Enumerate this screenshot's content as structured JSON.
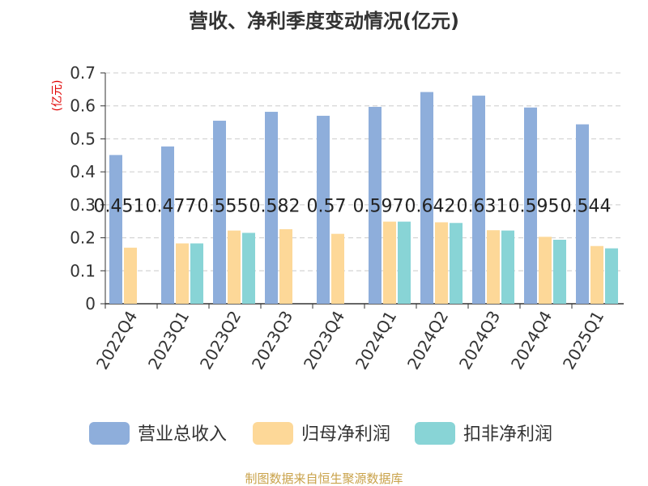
{
  "chart_data": {
    "type": "bar",
    "title": "营收、净利季度变动情况(亿元)",
    "ylabel": "(亿元)",
    "ylim": [
      0,
      0.7
    ],
    "yticks": [
      "0",
      "0.1",
      "0.2",
      "0.3",
      "0.4",
      "0.5",
      "0.6",
      "0.7"
    ],
    "grid": true,
    "legend_position": "bottom",
    "categories": [
      "2022Q4",
      "2023Q1",
      "2023Q2",
      "2023Q3",
      "2023Q4",
      "2024Q1",
      "2024Q2",
      "2024Q3",
      "2024Q4",
      "2025Q1"
    ],
    "series": [
      {
        "name": "营业总收入",
        "color": "#8eaedb",
        "values": [
          0.451,
          0.477,
          0.555,
          0.582,
          0.57,
          0.597,
          0.642,
          0.631,
          0.595,
          0.544
        ],
        "data_labels": [
          "0.451",
          "0.477",
          "0.555",
          "0.582",
          "0.57",
          "0.597",
          "0.642",
          "0.631",
          "0.595",
          "0.544"
        ]
      },
      {
        "name": "归母净利润",
        "color": "#fdd898",
        "values": [
          0.17,
          0.183,
          0.222,
          0.226,
          0.212,
          0.249,
          0.247,
          0.223,
          0.203,
          0.175
        ]
      },
      {
        "name": "扣非净利润",
        "color": "#88d4d6",
        "values": [
          null,
          0.183,
          0.215,
          null,
          null,
          0.249,
          0.245,
          0.222,
          0.194,
          0.168
        ]
      }
    ],
    "source": "制图数据来自恒生聚源数据库"
  }
}
